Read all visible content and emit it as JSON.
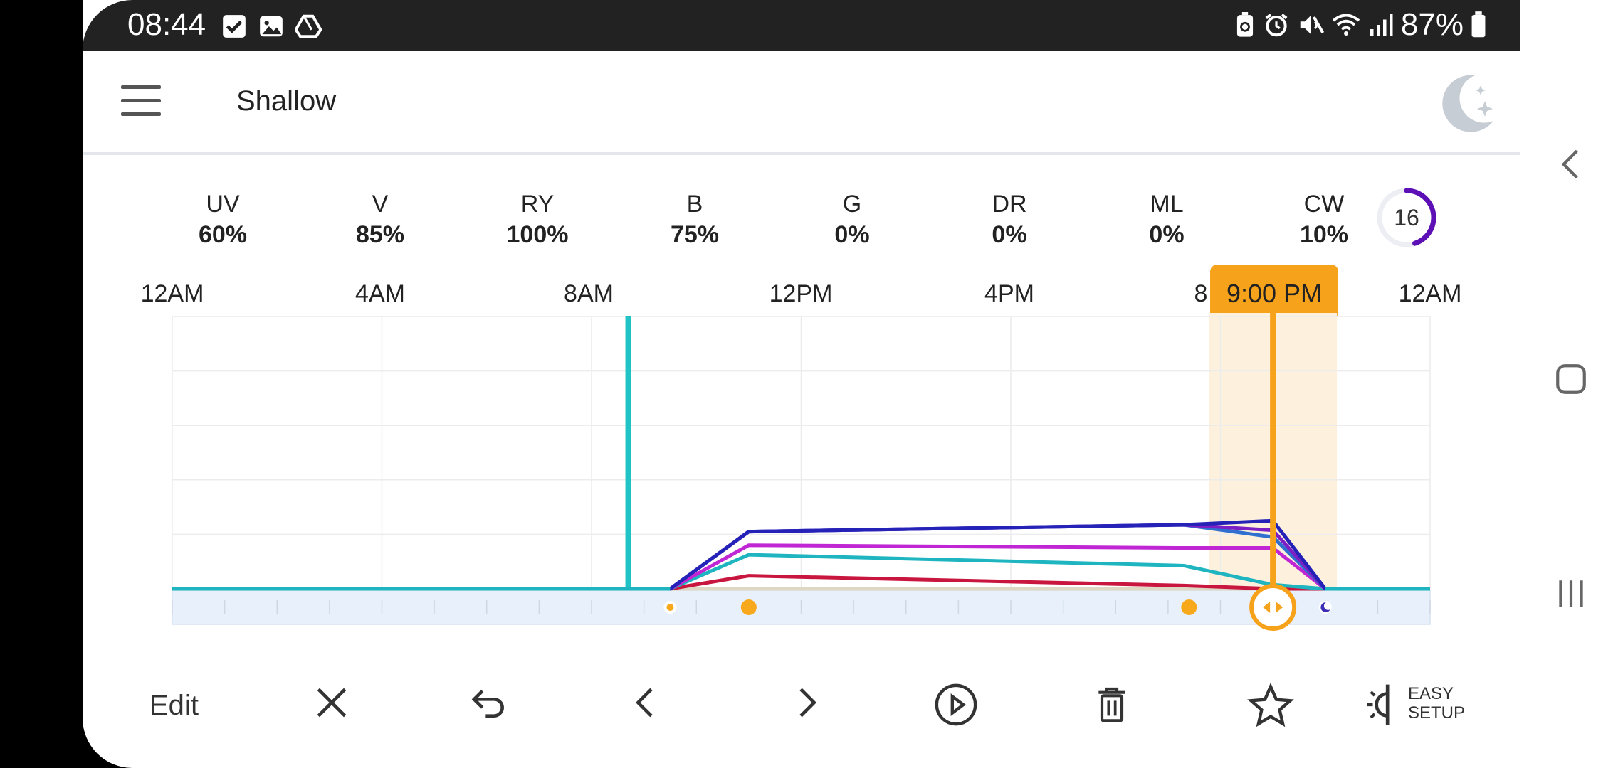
{
  "status_bar": {
    "time": "08:44",
    "battery": "87%",
    "left_icons": [
      "checkbox-icon",
      "image-icon",
      "drive-icon"
    ],
    "right_icons": [
      "battery-saver-icon",
      "alarm-icon",
      "mute-icon",
      "wifi-icon",
      "signal-icon",
      "battery-icon"
    ]
  },
  "app_bar": {
    "title": "Shallow",
    "menu_icon": "hamburger-menu-icon",
    "moon_icon": "night-mode-moon-icon"
  },
  "channels": [
    {
      "name": "UV",
      "value": "60%"
    },
    {
      "name": "V",
      "value": "85%"
    },
    {
      "name": "RY",
      "value": "100%"
    },
    {
      "name": "B",
      "value": "75%"
    },
    {
      "name": "G",
      "value": "0%"
    },
    {
      "name": "DR",
      "value": "0%"
    },
    {
      "name": "ML",
      "value": "0%"
    },
    {
      "name": "CW",
      "value": "10%"
    }
  ],
  "progress_ring": {
    "value": "16",
    "fraction": 0.45,
    "color": "#5b0fb5"
  },
  "timeline": {
    "labels": [
      "12AM",
      "4AM",
      "8AM",
      "12PM",
      "4PM",
      "8",
      "12AM"
    ],
    "selected_time": "9:00 PM",
    "accent": "#f7a21b"
  },
  "chart_data": {
    "type": "line",
    "x_unit": "hour of day",
    "x_range": [
      0,
      24
    ],
    "y_range": [
      0,
      100
    ],
    "x_ticks": [
      "12AM",
      "4AM",
      "8AM",
      "12PM",
      "4PM",
      "8",
      "12AM"
    ],
    "grid": true,
    "current_time_marker_hour": 8.7,
    "selected_hour": 21,
    "series": [
      {
        "color": "#2523b7",
        "points": [
          [
            0,
            0
          ],
          [
            9.5,
            0
          ],
          [
            11,
            21
          ],
          [
            19.3,
            23.5
          ],
          [
            21,
            25
          ],
          [
            22,
            0
          ],
          [
            24,
            0
          ]
        ]
      },
      {
        "color": "#7c1fc4",
        "points": [
          [
            0,
            0
          ],
          [
            9.5,
            0
          ],
          [
            11,
            21
          ],
          [
            19.3,
            23.5
          ],
          [
            21,
            21.5
          ],
          [
            22,
            0
          ],
          [
            24,
            0
          ]
        ]
      },
      {
        "color": "#2f6fd0",
        "points": [
          [
            0,
            0
          ],
          [
            9.5,
            0
          ],
          [
            11,
            21
          ],
          [
            19.3,
            23.5
          ],
          [
            21,
            19
          ],
          [
            22,
            0
          ],
          [
            24,
            0
          ]
        ]
      },
      {
        "color": "#c026d3",
        "points": [
          [
            0,
            0
          ],
          [
            9.5,
            0
          ],
          [
            11,
            16
          ],
          [
            19.3,
            15
          ],
          [
            21,
            15
          ],
          [
            22,
            0
          ],
          [
            24,
            0
          ]
        ]
      },
      {
        "color": "#1fb5c0",
        "points": [
          [
            0,
            0
          ],
          [
            9.5,
            0
          ],
          [
            11,
            12.5
          ],
          [
            19.3,
            8.5
          ],
          [
            21,
            1.5
          ],
          [
            22,
            0
          ],
          [
            24,
            0
          ]
        ]
      },
      {
        "color": "#c8163f",
        "points": [
          [
            0,
            0
          ],
          [
            9.5,
            0
          ],
          [
            11,
            4.8
          ],
          [
            19.3,
            1.2
          ],
          [
            21,
            0
          ],
          [
            22,
            0
          ],
          [
            24,
            0
          ]
        ]
      }
    ],
    "markers": [
      {
        "hour": 9.5,
        "kind": "small-sun"
      },
      {
        "hour": 11,
        "kind": "sun"
      },
      {
        "hour": 19.4,
        "kind": "sun"
      },
      {
        "hour": 21,
        "kind": "selected-handle"
      },
      {
        "hour": 22,
        "kind": "moon"
      }
    ]
  },
  "toolbar": {
    "edit_label": "Edit",
    "easy_setup_line1": "EASY",
    "easy_setup_line2": "SETUP",
    "icons": [
      "close-icon",
      "undo-icon",
      "previous-icon",
      "next-icon",
      "play-icon",
      "delete-icon",
      "favorite-star-icon",
      "easy-setup-icon"
    ]
  },
  "nav_bar": {
    "icons": [
      "back-icon",
      "home-icon",
      "recents-icon"
    ]
  }
}
